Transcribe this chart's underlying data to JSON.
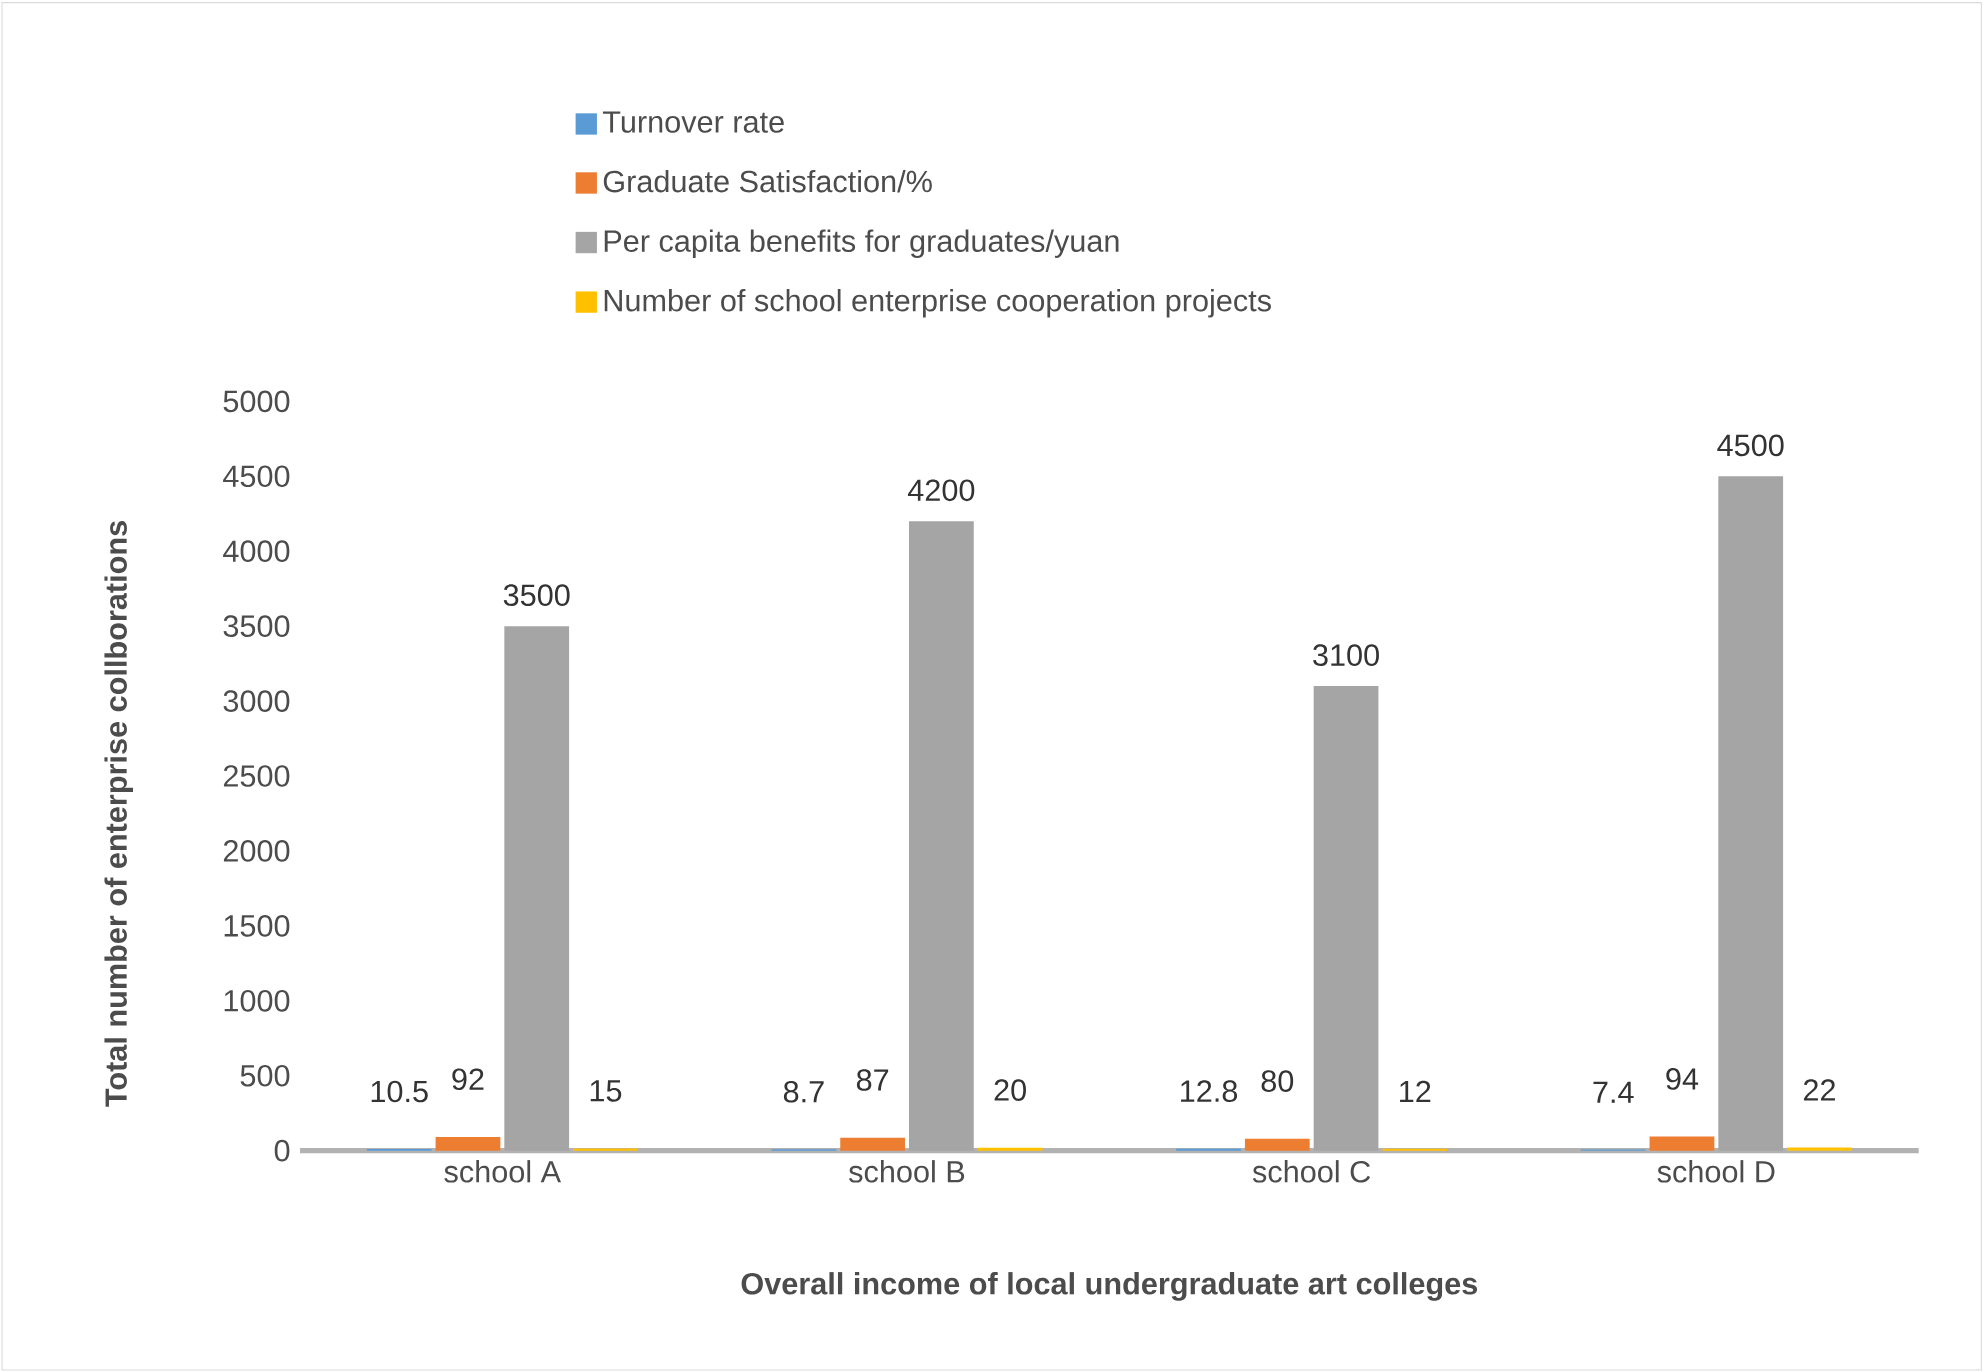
{
  "chart_data": {
    "type": "bar",
    "xlabel": "Overall income of local undergraduate art colleges",
    "ylabel": "Total number of enterprise collborations",
    "categories": [
      "school A",
      "school B",
      "school C",
      "school D"
    ],
    "series": [
      {
        "name": "Turnover rate",
        "color": "#5b9bd5",
        "values": [
          10.5,
          8.7,
          12.8,
          7.4
        ]
      },
      {
        "name": "Graduate Satisfaction/%",
        "color": "#ed7d31",
        "values": [
          92,
          87,
          80,
          94
        ]
      },
      {
        "name": "Per capita benefits for graduates/yuan",
        "color": "#a5a5a5",
        "values": [
          3500,
          4200,
          3100,
          4500
        ]
      },
      {
        "name": "Number of school enterprise cooperation projects",
        "color": "#ffc000",
        "values": [
          15,
          20,
          12,
          22
        ]
      }
    ],
    "ylim": [
      0,
      5000
    ],
    "yticks": [
      0,
      500,
      1000,
      1500,
      2000,
      2500,
      3000,
      3500,
      4000,
      4500,
      5000
    ],
    "data_labels": true,
    "legend": "top"
  }
}
